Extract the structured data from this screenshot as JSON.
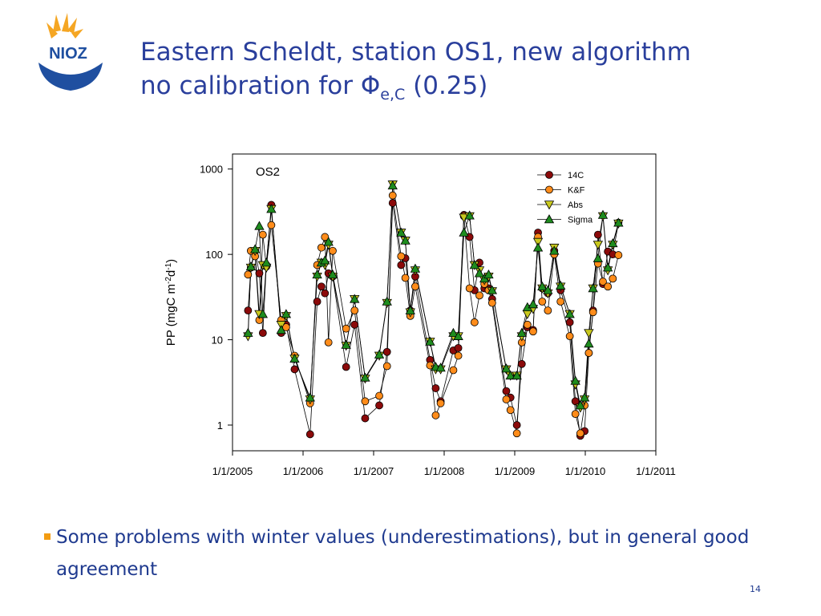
{
  "logo": "NIOZ",
  "title": [
    "Eastern Scheldt, station OS1, new algorithm",
    "no calibration for Φ"
  ],
  "title_subscript": "e,C",
  "title_end": "(0.25)",
  "bullet": "Some problems with winter values (underestimations),  but in general good agreement",
  "page_number": "14",
  "chart_data": {
    "type": "line",
    "annotation": "OS2",
    "ylabel": [
      "PP (mgC m",
      "-2",
      "d",
      "-1",
      ")"
    ],
    "log_scale": true,
    "legend": "upper right",
    "line_color": "#000000",
    "xlim": [
      2005,
      2011
    ],
    "xticks": [
      {
        "value": 2005,
        "label": "1/1/2005"
      },
      {
        "value": 2006,
        "label": "1/1/2006"
      },
      {
        "value": 2007,
        "label": "1/1/2007"
      },
      {
        "value": 2008,
        "label": "1/1/2008"
      },
      {
        "value": 2009,
        "label": "1/1/2009"
      },
      {
        "value": 2010,
        "label": "1/1/2010"
      },
      {
        "value": 2011,
        "label": "1/1/2011"
      }
    ],
    "ylim": [
      0.5,
      1500
    ],
    "yticks": [
      1,
      10,
      100,
      1000
    ],
    "x": [
      2005.22,
      2005.26,
      2005.32,
      2005.38,
      2005.43,
      2005.48,
      2005.55,
      2005.69,
      2005.76,
      2005.88,
      2006.1,
      2006.2,
      2006.26,
      2006.31,
      2006.36,
      2006.42,
      2006.61,
      2006.73,
      2006.88,
      2007.08,
      2007.19,
      2007.27,
      2007.39,
      2007.45,
      2007.52,
      2007.59,
      2007.8,
      2007.88,
      2007.95,
      2008.13,
      2008.2,
      2008.28,
      2008.36,
      2008.43,
      2008.5,
      2008.57,
      2008.63,
      2008.68,
      2008.88,
      2008.94,
      2009.03,
      2009.1,
      2009.18,
      2009.26,
      2009.33,
      2009.39,
      2009.47,
      2009.56,
      2009.65,
      2009.78,
      2009.86,
      2009.93,
      2009.99,
      2010.05,
      2010.11,
      2010.18,
      2010.25,
      2010.32,
      2010.39,
      2010.47
    ],
    "series": [
      {
        "name": "14C",
        "color": "#8b0a0a",
        "marker": "circle",
        "values": [
          22,
          70,
          110,
          60,
          12,
          75,
          380,
          12,
          15,
          4.5,
          0.78,
          28,
          42,
          35,
          60,
          55,
          4.8,
          15,
          1.2,
          1.7,
          7.2,
          400,
          75,
          90,
          22,
          55,
          5.8,
          2.7,
          1.9,
          7.5,
          8,
          290,
          160,
          38,
          80,
          40,
          40,
          30,
          2.5,
          2.1,
          1.0,
          5.2,
          14,
          13,
          180,
          40,
          35,
          110,
          38,
          16,
          1.9,
          0.75,
          0.85,
          7,
          22,
          170,
          45,
          108,
          100,
          235
        ]
      },
      {
        "name": "K&F",
        "color": "#ff8c1a",
        "marker": "circle",
        "values": [
          58,
          110,
          95,
          17,
          170,
          72,
          220,
          17,
          14,
          6.5,
          1.8,
          75,
          120,
          160,
          9.3,
          110,
          13.5,
          22,
          1.9,
          2.2,
          4.9,
          490,
          95,
          53,
          19,
          42,
          5,
          1.3,
          1.8,
          4.4,
          6.5,
          280,
          40,
          16,
          33,
          45,
          38,
          27,
          2,
          1.5,
          0.8,
          9.3,
          15,
          12.5,
          160,
          28,
          22,
          100,
          28,
          11,
          1.35,
          0.8,
          1.7,
          7,
          21,
          78,
          48,
          42,
          52,
          98
        ]
      },
      {
        "name": "Abs",
        "color": "#c8c81e",
        "marker": "triangle-down",
        "values": [
          11,
          70,
          110,
          20,
          75,
          70,
          340,
          15,
          19,
          6,
          2,
          55,
          80,
          75,
          130,
          55,
          8.5,
          30,
          3.5,
          6.5,
          27,
          660,
          180,
          145,
          21,
          65,
          9.5,
          4.5,
          4.5,
          11,
          11,
          270,
          280,
          75,
          65,
          50,
          55,
          37,
          4.5,
          3.8,
          3.8,
          11,
          20,
          23,
          140,
          40,
          35,
          120,
          42,
          20,
          3,
          1.6,
          2,
          12,
          40,
          130,
          280,
          65,
          130,
          230
        ]
      },
      {
        "name": "Sigma",
        "color": "#1e8c1e",
        "marker": "triangle-up",
        "values": [
          12,
          72,
          115,
          215,
          20,
          80,
          340,
          13,
          20,
          6,
          2.1,
          58,
          80,
          85,
          140,
          58,
          8.7,
          30,
          3.6,
          6.7,
          28,
          640,
          180,
          145,
          22,
          68,
          9.5,
          4.8,
          4.7,
          12,
          11,
          180,
          285,
          75,
          60,
          52,
          58,
          38,
          4.6,
          3.8,
          3.8,
          12,
          24,
          26,
          120,
          42,
          38,
          110,
          43,
          20,
          3.3,
          1.7,
          2.1,
          9,
          40,
          90,
          290,
          70,
          135,
          235
        ]
      }
    ]
  }
}
